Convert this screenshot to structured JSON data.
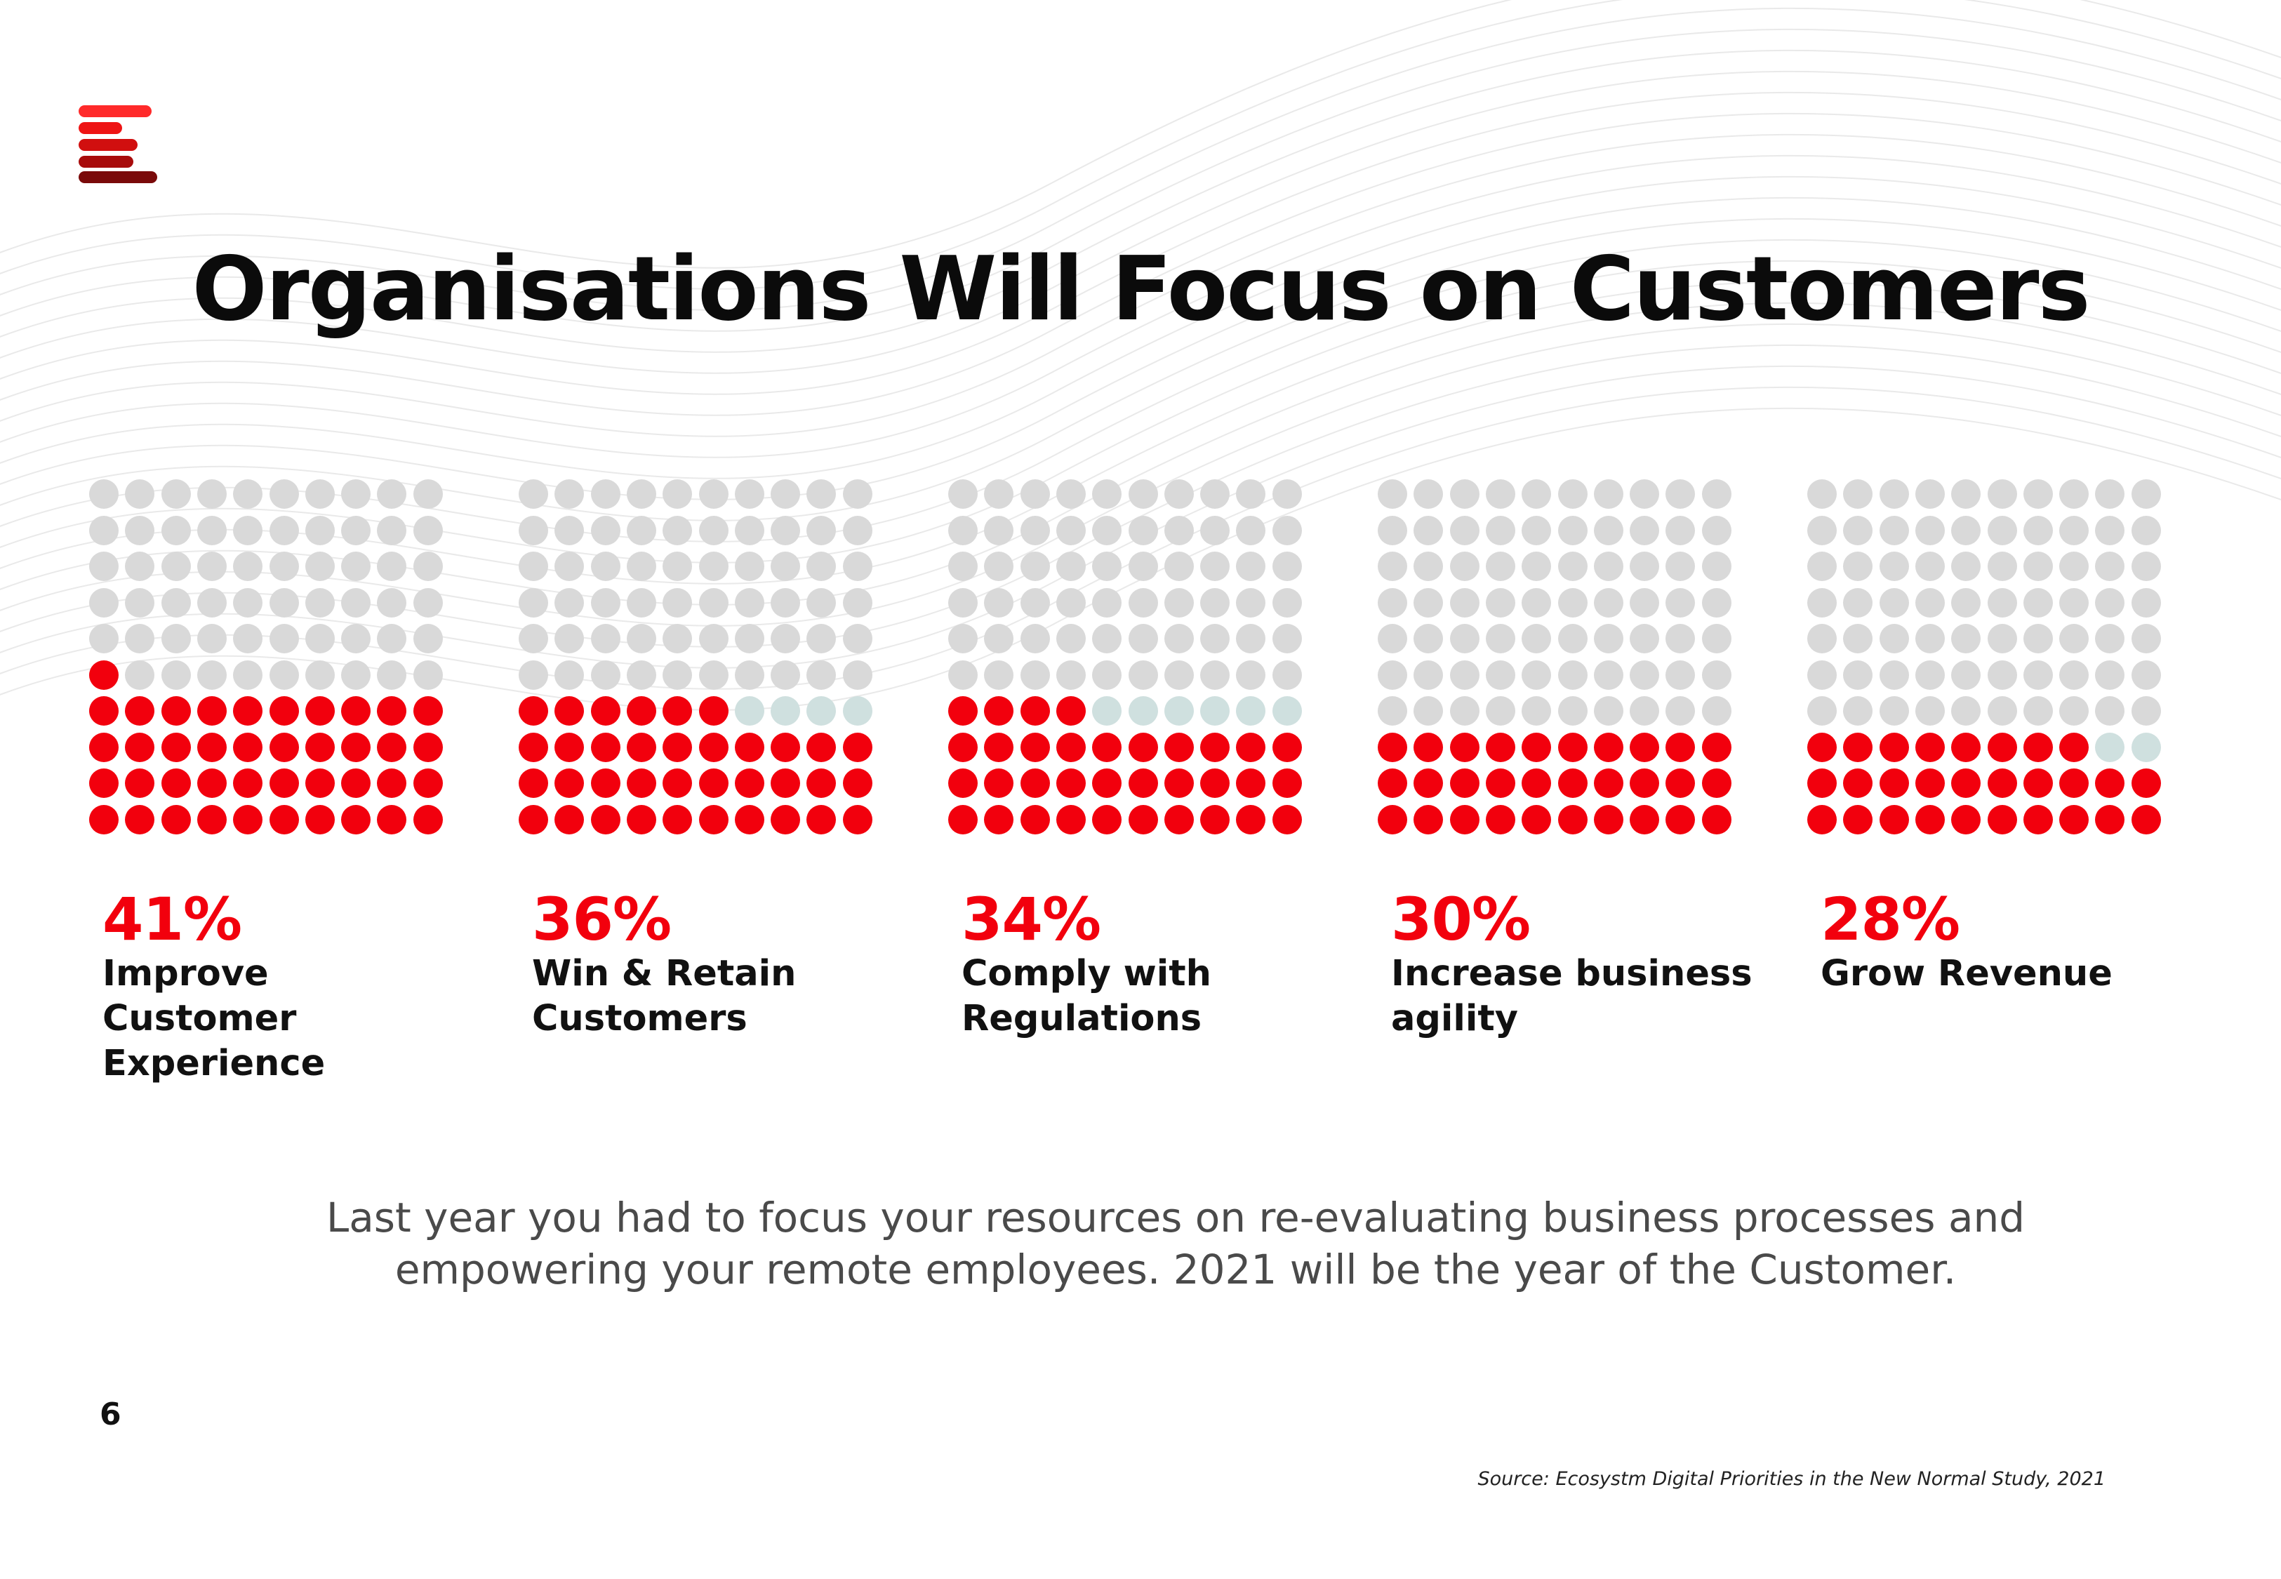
{
  "title": "Organisations Will Focus on Customers",
  "subtitle": "Last year you had to focus your resources on re-evaluating business processes and empowering your remote employees. 2021 will be the year of the Customer.",
  "page_number": "6",
  "source": "Source: Ecosystm Digital Priorities in the New Normal Study, 2021",
  "colors": {
    "filled": "#f2000d",
    "empty": "#d9d9d9",
    "partial": "#cfe0df",
    "logo": [
      "#ff2a2a",
      "#ee1414",
      "#d10f0f",
      "#a80c0c",
      "#7a0a0a"
    ]
  },
  "chart_data": {
    "type": "waffle",
    "total_per_chart": 100,
    "categories": [
      "Improve Customer Experience",
      "Win & Retain Customers",
      "Comply with Regulations",
      "Increase business agility",
      "Grow Revenue"
    ],
    "values": [
      41,
      36,
      34,
      30,
      28
    ],
    "labels": [
      "41%",
      "36%",
      "34%",
      "30%",
      "28%"
    ],
    "partial_cells": [
      0,
      4,
      6,
      0,
      2
    ]
  }
}
